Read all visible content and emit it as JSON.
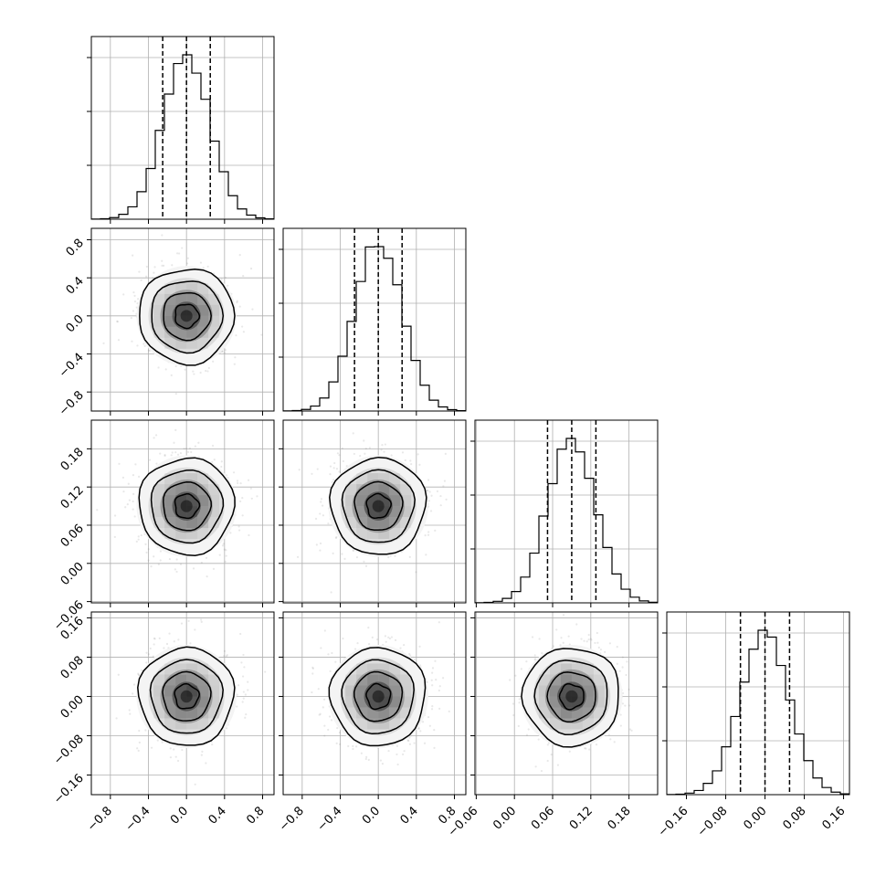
{
  "chart_data": {
    "type": "corner",
    "grid": true,
    "quantiles_shown": [
      0.16,
      0.5,
      0.84
    ],
    "parameters": [
      {
        "range": [
          -1.0,
          0.92
        ],
        "ticks": [
          -0.8,
          -0.4,
          0.0,
          0.4,
          0.8
        ],
        "tick_labels": [
          "−0.8",
          "−0.4",
          "0.0",
          "0.4",
          "0.8"
        ],
        "mean": 0.0,
        "std": 0.25,
        "quantiles": [
          -0.25,
          0.0,
          0.25
        ]
      },
      {
        "range": [
          -1.0,
          0.92
        ],
        "ticks": [
          -0.8,
          -0.4,
          0.0,
          0.4,
          0.8
        ],
        "tick_labels": [
          "−0.8",
          "−0.4",
          "0.0",
          "0.4",
          "0.8"
        ],
        "mean": 0.0,
        "std": 0.25,
        "quantiles": [
          -0.25,
          0.0,
          0.25
        ]
      },
      {
        "range": [
          -0.062,
          0.225
        ],
        "ticks": [
          -0.06,
          0.0,
          0.06,
          0.12,
          0.18
        ],
        "tick_labels": [
          "−0.06",
          "0.00",
          "0.06",
          "0.12",
          "0.18"
        ],
        "mean": 0.09,
        "std": 0.038,
        "quantiles": [
          0.052,
          0.09,
          0.128
        ]
      },
      {
        "range": [
          -0.2,
          0.172
        ],
        "ticks": [
          -0.16,
          -0.08,
          0.0,
          0.08,
          0.16
        ],
        "tick_labels": [
          "−0.16",
          "−0.08",
          "0.00",
          "0.08",
          "0.16"
        ],
        "mean": 0.0,
        "std": 0.05,
        "quantiles": [
          -0.05,
          0.0,
          0.05
        ]
      }
    ],
    "histogram_bins": 20,
    "density_levels_sigma": [
      0.5,
      1.0,
      1.5,
      2.0
    ]
  }
}
